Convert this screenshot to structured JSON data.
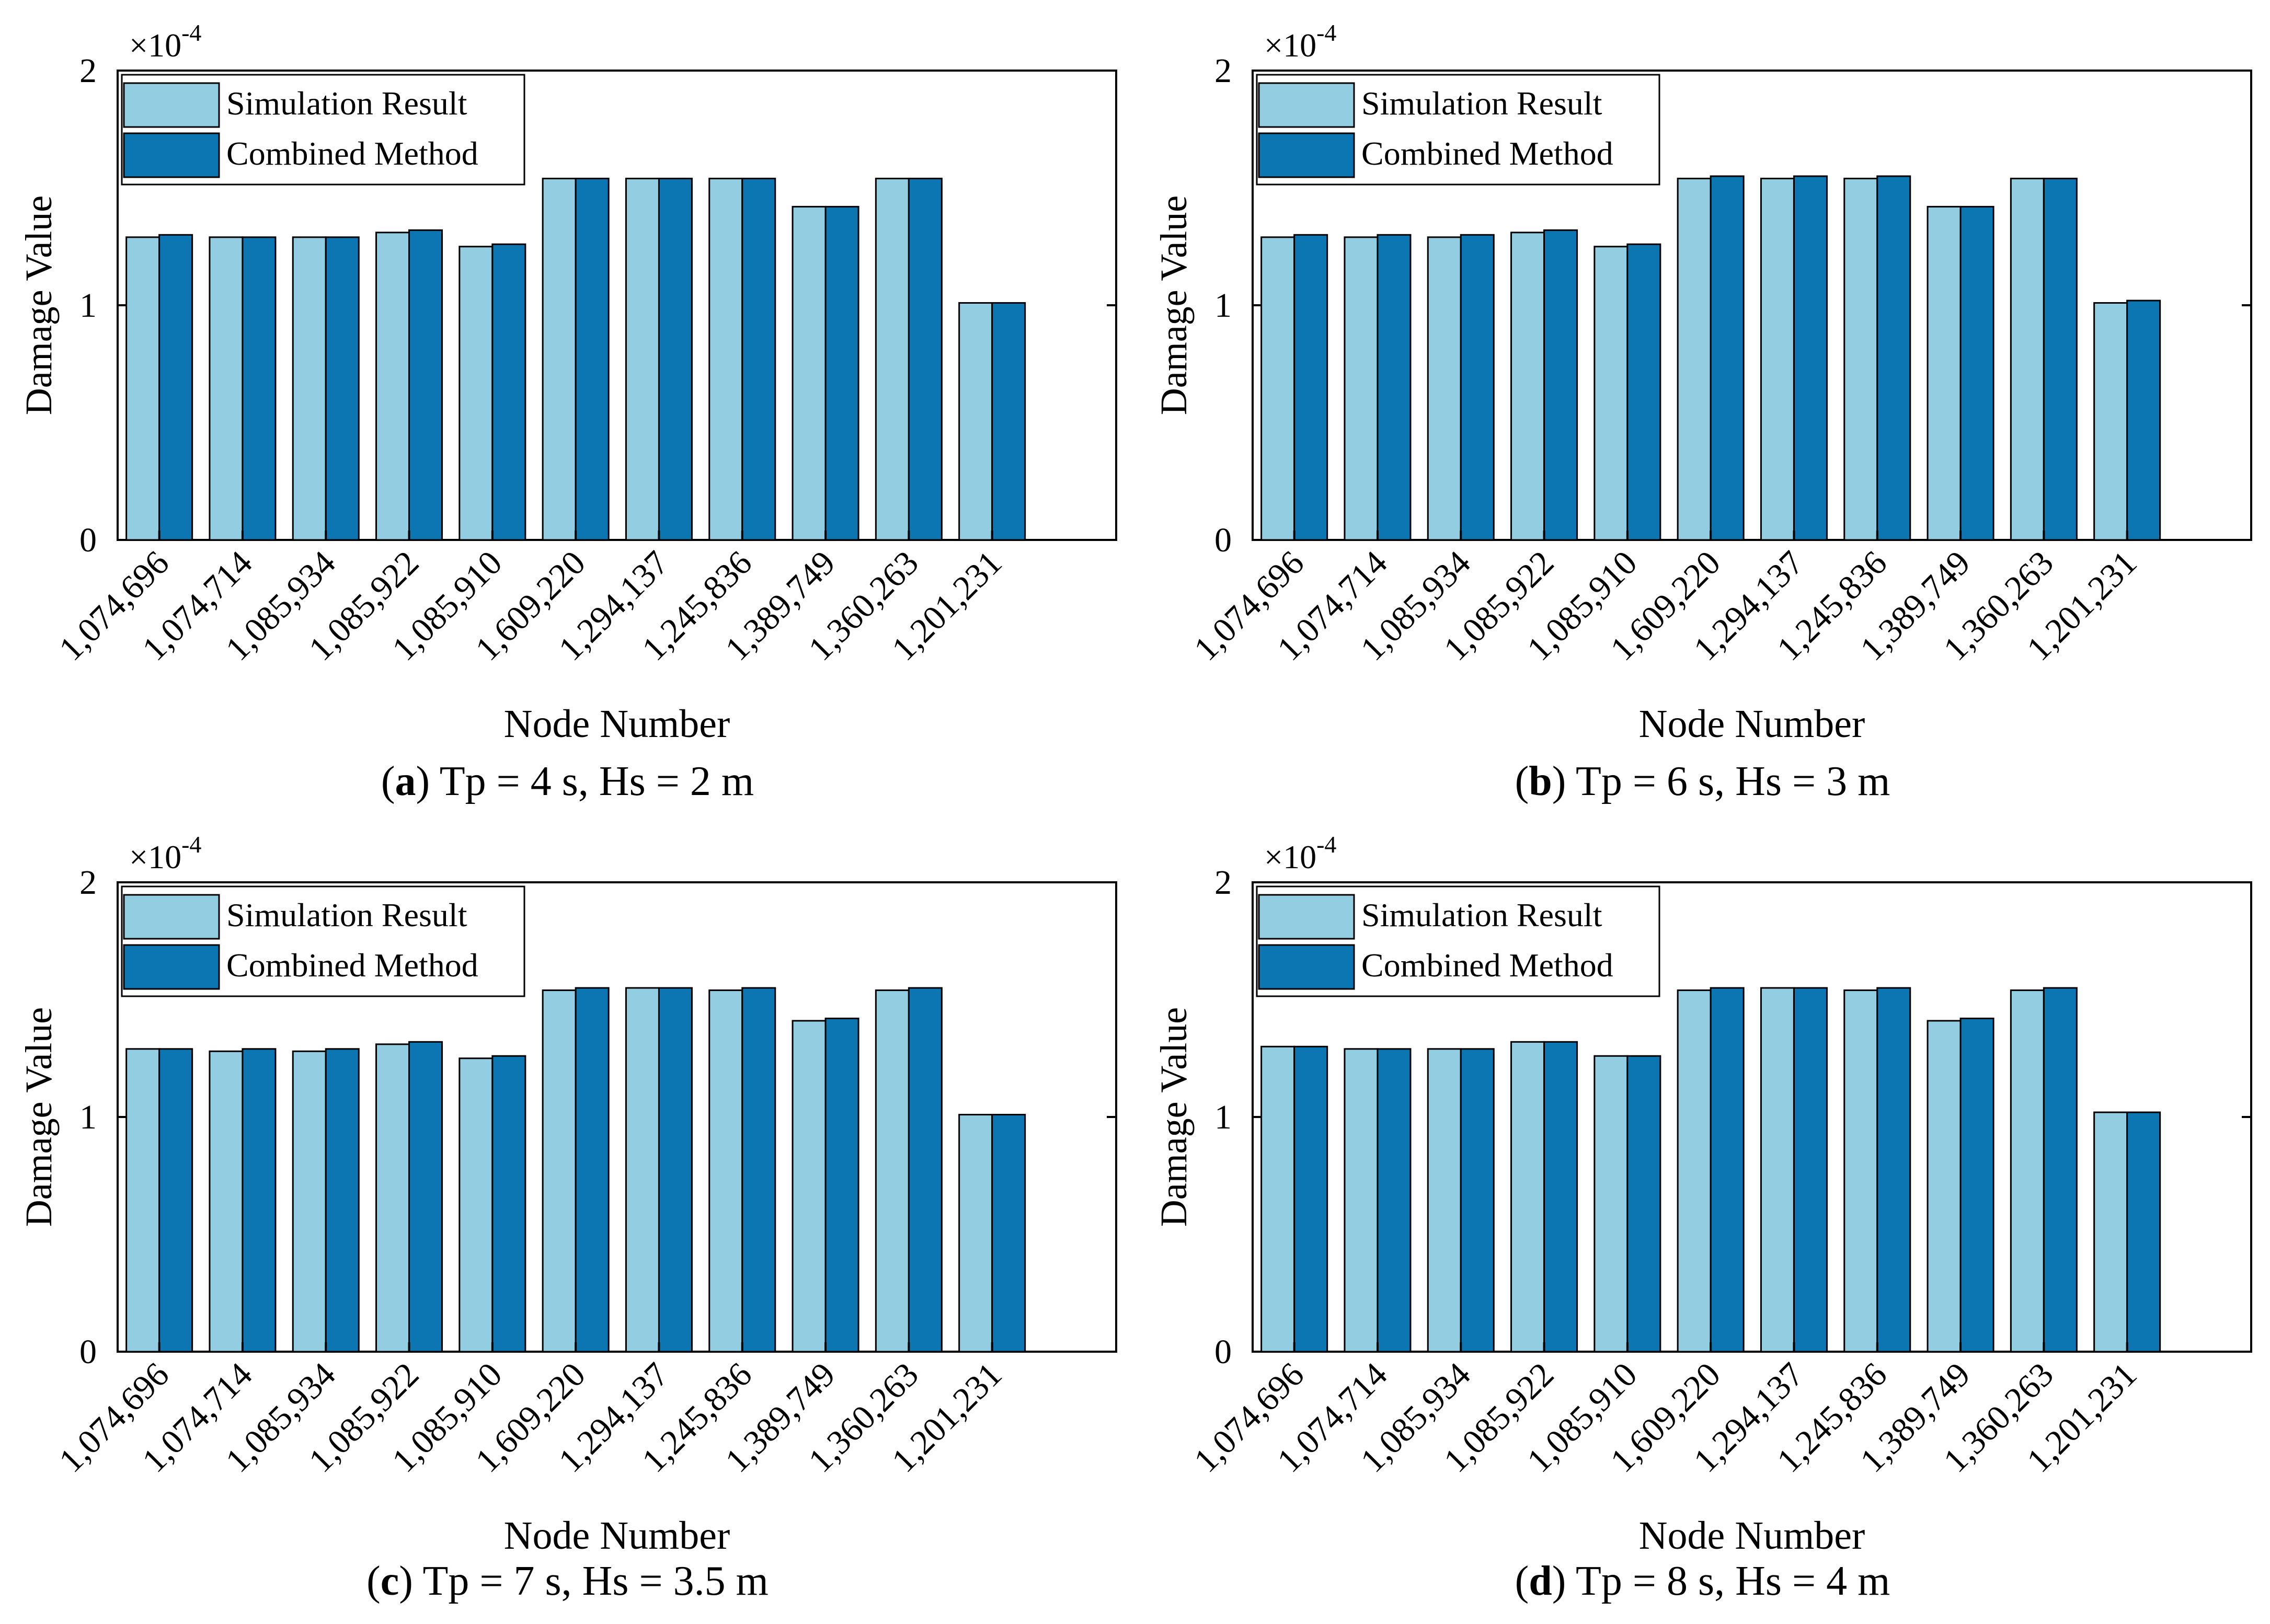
{
  "figure": {
    "common": {
      "ylabel": "Damage Value",
      "xlabel": "Node Number",
      "ylim": [
        0,
        2
      ],
      "yticks": [
        "0",
        "1",
        "2"
      ],
      "multiplier_base": "×10",
      "multiplier_exp": "-4",
      "legend": [
        "Simulation Result",
        "Combined Method"
      ],
      "colors": {
        "simulation": "#92CDE2",
        "combined": "#0C76B3",
        "edge": "#000000"
      }
    },
    "panels": [
      {
        "id": "a",
        "letter": "a",
        "caption": ") Tp = 4 s, Hs = 2 m"
      },
      {
        "id": "b",
        "letter": "b",
        "caption": ") Tp = 6 s, Hs = 3 m"
      },
      {
        "id": "c",
        "letter": "c",
        "caption": ") Tp = 7 s, Hs = 3.5 m"
      },
      {
        "id": "d",
        "letter": "d",
        "caption": ") Tp = 8 s, Hs = 4 m"
      }
    ]
  },
  "chart_data": [
    {
      "type": "bar",
      "title": "(a) Tp = 4 s, Hs = 2 m",
      "xlabel": "Node Number",
      "ylabel": "Damage Value",
      "ylim": [
        0,
        2
      ],
      "scale": "×10^-4",
      "legend_position": "top-left",
      "categories": [
        "1,074,696",
        "1,074,714",
        "1,085,934",
        "1,085,922",
        "1,085,910",
        "1,609,220",
        "1,294,137",
        "1,245,836",
        "1,389,749",
        "1,360,263",
        "1,201,231"
      ],
      "series": [
        {
          "name": "Simulation Result",
          "values": [
            1.29,
            1.29,
            1.29,
            1.31,
            1.25,
            1.54,
            1.54,
            1.54,
            1.42,
            1.54,
            1.01
          ]
        },
        {
          "name": "Combined Method",
          "values": [
            1.3,
            1.29,
            1.29,
            1.32,
            1.26,
            1.54,
            1.54,
            1.54,
            1.42,
            1.54,
            1.01
          ]
        }
      ]
    },
    {
      "type": "bar",
      "title": "(b) Tp = 6 s, Hs = 3 m",
      "xlabel": "Node Number",
      "ylabel": "Damage Value",
      "ylim": [
        0,
        2
      ],
      "scale": "×10^-4",
      "legend_position": "top-left",
      "categories": [
        "1,074,696",
        "1,074,714",
        "1,085,934",
        "1,085,922",
        "1,085,910",
        "1,609,220",
        "1,294,137",
        "1,245,836",
        "1,389,749",
        "1,360,263",
        "1,201,231"
      ],
      "series": [
        {
          "name": "Simulation Result",
          "values": [
            1.29,
            1.29,
            1.29,
            1.31,
            1.25,
            1.54,
            1.54,
            1.54,
            1.42,
            1.54,
            1.01
          ]
        },
        {
          "name": "Combined Method",
          "values": [
            1.3,
            1.3,
            1.3,
            1.32,
            1.26,
            1.55,
            1.55,
            1.55,
            1.42,
            1.54,
            1.02
          ]
        }
      ]
    },
    {
      "type": "bar",
      "title": "(c) Tp = 7 s, Hs = 3.5 m",
      "xlabel": "Node Number",
      "ylabel": "Damage Value",
      "ylim": [
        0,
        2
      ],
      "scale": "×10^-4",
      "legend_position": "top-left",
      "categories": [
        "1,074,696",
        "1,074,714",
        "1,085,934",
        "1,085,922",
        "1,085,910",
        "1,609,220",
        "1,294,137",
        "1,245,836",
        "1,389,749",
        "1,360,263",
        "1,201,231"
      ],
      "series": [
        {
          "name": "Simulation Result",
          "values": [
            1.29,
            1.28,
            1.28,
            1.31,
            1.25,
            1.54,
            1.55,
            1.54,
            1.41,
            1.54,
            1.01
          ]
        },
        {
          "name": "Combined Method",
          "values": [
            1.29,
            1.29,
            1.29,
            1.32,
            1.26,
            1.55,
            1.55,
            1.55,
            1.42,
            1.55,
            1.01
          ]
        }
      ]
    },
    {
      "type": "bar",
      "title": "(d) Tp = 8 s, Hs = 4 m",
      "xlabel": "Node Number",
      "ylabel": "Damage Value",
      "ylim": [
        0,
        2
      ],
      "scale": "×10^-4",
      "legend_position": "top-left",
      "categories": [
        "1,074,696",
        "1,074,714",
        "1,085,934",
        "1,085,922",
        "1,085,910",
        "1,609,220",
        "1,294,137",
        "1,245,836",
        "1,389,749",
        "1,360,263",
        "1,201,231"
      ],
      "series": [
        {
          "name": "Simulation Result",
          "values": [
            1.3,
            1.29,
            1.29,
            1.32,
            1.26,
            1.54,
            1.55,
            1.54,
            1.41,
            1.54,
            1.02
          ]
        },
        {
          "name": "Combined Method",
          "values": [
            1.3,
            1.29,
            1.29,
            1.32,
            1.26,
            1.55,
            1.55,
            1.55,
            1.42,
            1.55,
            1.02
          ]
        }
      ]
    }
  ]
}
